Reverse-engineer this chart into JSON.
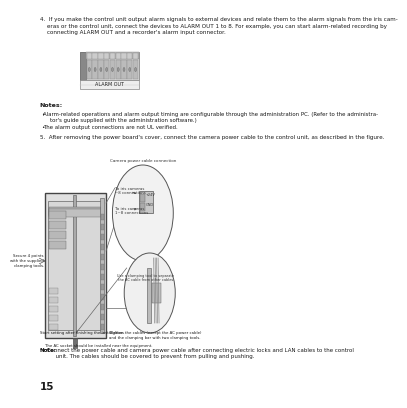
{
  "page_number": "15",
  "bg": "#ffffff",
  "item4": "4.  If you make the control unit output alarm signals to external devices and relate them to the alarm signals from the iris cam-\n    eras or the control unit, connect the devices to ALARM OUT 1 to 8. For example, you can start alarm-related recording by\n    connecting ALARM OUT and a recorder's alarm input connector.",
  "notes_title": "Notes:",
  "note1": "Alarm-related operations and alarm output timing are configurable through the administration PC. (Refer to the administra-\n    tor's guide supplied with the administration software.)",
  "note2": "The alarm output connections are not UL verified.",
  "item5": "5.  After removing the power board's cover, connect the camera power cable to the control unit, as described in the figure.",
  "note_bold": "Note:",
  "note_rest": " Connect the power cable and camera power cable after connecting electric locks and LAN cables to the control\n      unit. The cables should be covered to prevent from pulling and pushing.",
  "alarm_label": "ALARM OUT",
  "lbl_camera_pwr": "Camera power cable connection",
  "lbl_iris1": "To iris cameras\n~8 connections",
  "lbl_iris2": "To iris cameras\n1~8 connections",
  "lbl_secure": "Secure 4 points\nwith the supplied\nclamping tools.",
  "lbl_ac": "The AC socket should be installed near the equipment.",
  "lbl_start": "Start setting after finishing the installation.",
  "lbl_tighten": "Tighten the cables (except the AC power cable)\nand the clamping bar with two clamping tools.",
  "lbl_clamp": "Use a clamping tool to separate\nthe AC cable from other cables."
}
